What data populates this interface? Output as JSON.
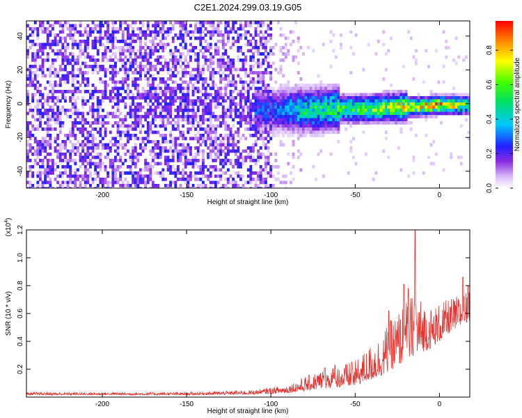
{
  "chart_data": [
    {
      "type": "heatmap",
      "title": "C2E1.2024.299.03.19.G05",
      "xlabel": "Height of straight line (km)",
      "ylabel": "Frequency (Hz)",
      "xlim": [
        -245,
        18
      ],
      "ylim": [
        -50,
        49
      ],
      "xticks": [
        -200,
        -150,
        -100,
        -50,
        0
      ],
      "yticks": [
        -40,
        -20,
        0,
        20,
        40
      ],
      "grid": false,
      "colorbar": {
        "label": "Normalized spectral amplitude",
        "range": [
          0,
          0.97
        ],
        "ticks": [
          0.0,
          0.2,
          0.4,
          0.6,
          0.8
        ],
        "tick_labels": [
          "0.0",
          "0.2",
          "0.4",
          "0.6",
          "0.8"
        ],
        "colormap": "rainbow"
      },
      "signal_track": {
        "description_points": [
          {
            "x": -100,
            "freq": -3,
            "amp": 0.3
          },
          {
            "x": -80,
            "freq": -3,
            "amp": 0.55
          },
          {
            "x": -60,
            "freq": -2,
            "amp": 0.6
          },
          {
            "x": -40,
            "freq": -2,
            "amp": 0.7
          },
          {
            "x": -20,
            "freq": -1,
            "amp": 0.85
          },
          {
            "x": 0,
            "freq": 0,
            "amp": 0.95
          },
          {
            "x": 15,
            "freq": 0,
            "amp": 0.7
          }
        ]
      },
      "noise_region": {
        "x_from": -245,
        "x_to": -100,
        "amp_range": [
          0.05,
          0.25
        ]
      }
    },
    {
      "type": "line",
      "title": "",
      "xlabel": "Height of straight line (km)",
      "ylabel": "SNR (10 * v/v)",
      "y_multiplier": "(x10",
      "y_multiplier_exp": "4",
      "y_multiplier_close": ")",
      "xlim": [
        -245,
        18
      ],
      "ylim": [
        0,
        1.2
      ],
      "xticks": [
        -200,
        -150,
        -100,
        -50,
        0
      ],
      "yticks": [
        0.2,
        0.4,
        0.6,
        0.8,
        1.0,
        1.2
      ],
      "grid": false,
      "series": [
        {
          "color": "#e8302c",
          "envelope": [
            {
              "x": -245,
              "base": 0.015,
              "amp": 0.02
            },
            {
              "x": -150,
              "base": 0.015,
              "amp": 0.02
            },
            {
              "x": -110,
              "base": 0.02,
              "amp": 0.03
            },
            {
              "x": -90,
              "base": 0.03,
              "amp": 0.06
            },
            {
              "x": -70,
              "base": 0.06,
              "amp": 0.14
            },
            {
              "x": -50,
              "base": 0.08,
              "amp": 0.18
            },
            {
              "x": -35,
              "base": 0.15,
              "amp": 0.3
            },
            {
              "x": -25,
              "base": 0.22,
              "amp": 0.4
            },
            {
              "x": -15,
              "base": 0.3,
              "amp": 0.45
            },
            {
              "x": -5,
              "base": 0.35,
              "amp": 0.3
            },
            {
              "x": 5,
              "base": 0.45,
              "amp": 0.25
            },
            {
              "x": 18,
              "base": 0.55,
              "amp": 0.22
            }
          ],
          "peaks": [
            {
              "x": -14.5,
              "y": 1.2
            },
            {
              "x": -21,
              "y": 0.81
            },
            {
              "x": -18.5,
              "y": 0.78
            },
            {
              "x": -30,
              "y": 0.62
            },
            {
              "x": 14,
              "y": 0.86
            },
            {
              "x": 17,
              "y": 0.8
            },
            {
              "x": -68,
              "y": 0.21
            },
            {
              "x": -62,
              "y": 0.23
            },
            {
              "x": -52,
              "y": 0.25
            }
          ]
        }
      ]
    }
  ]
}
